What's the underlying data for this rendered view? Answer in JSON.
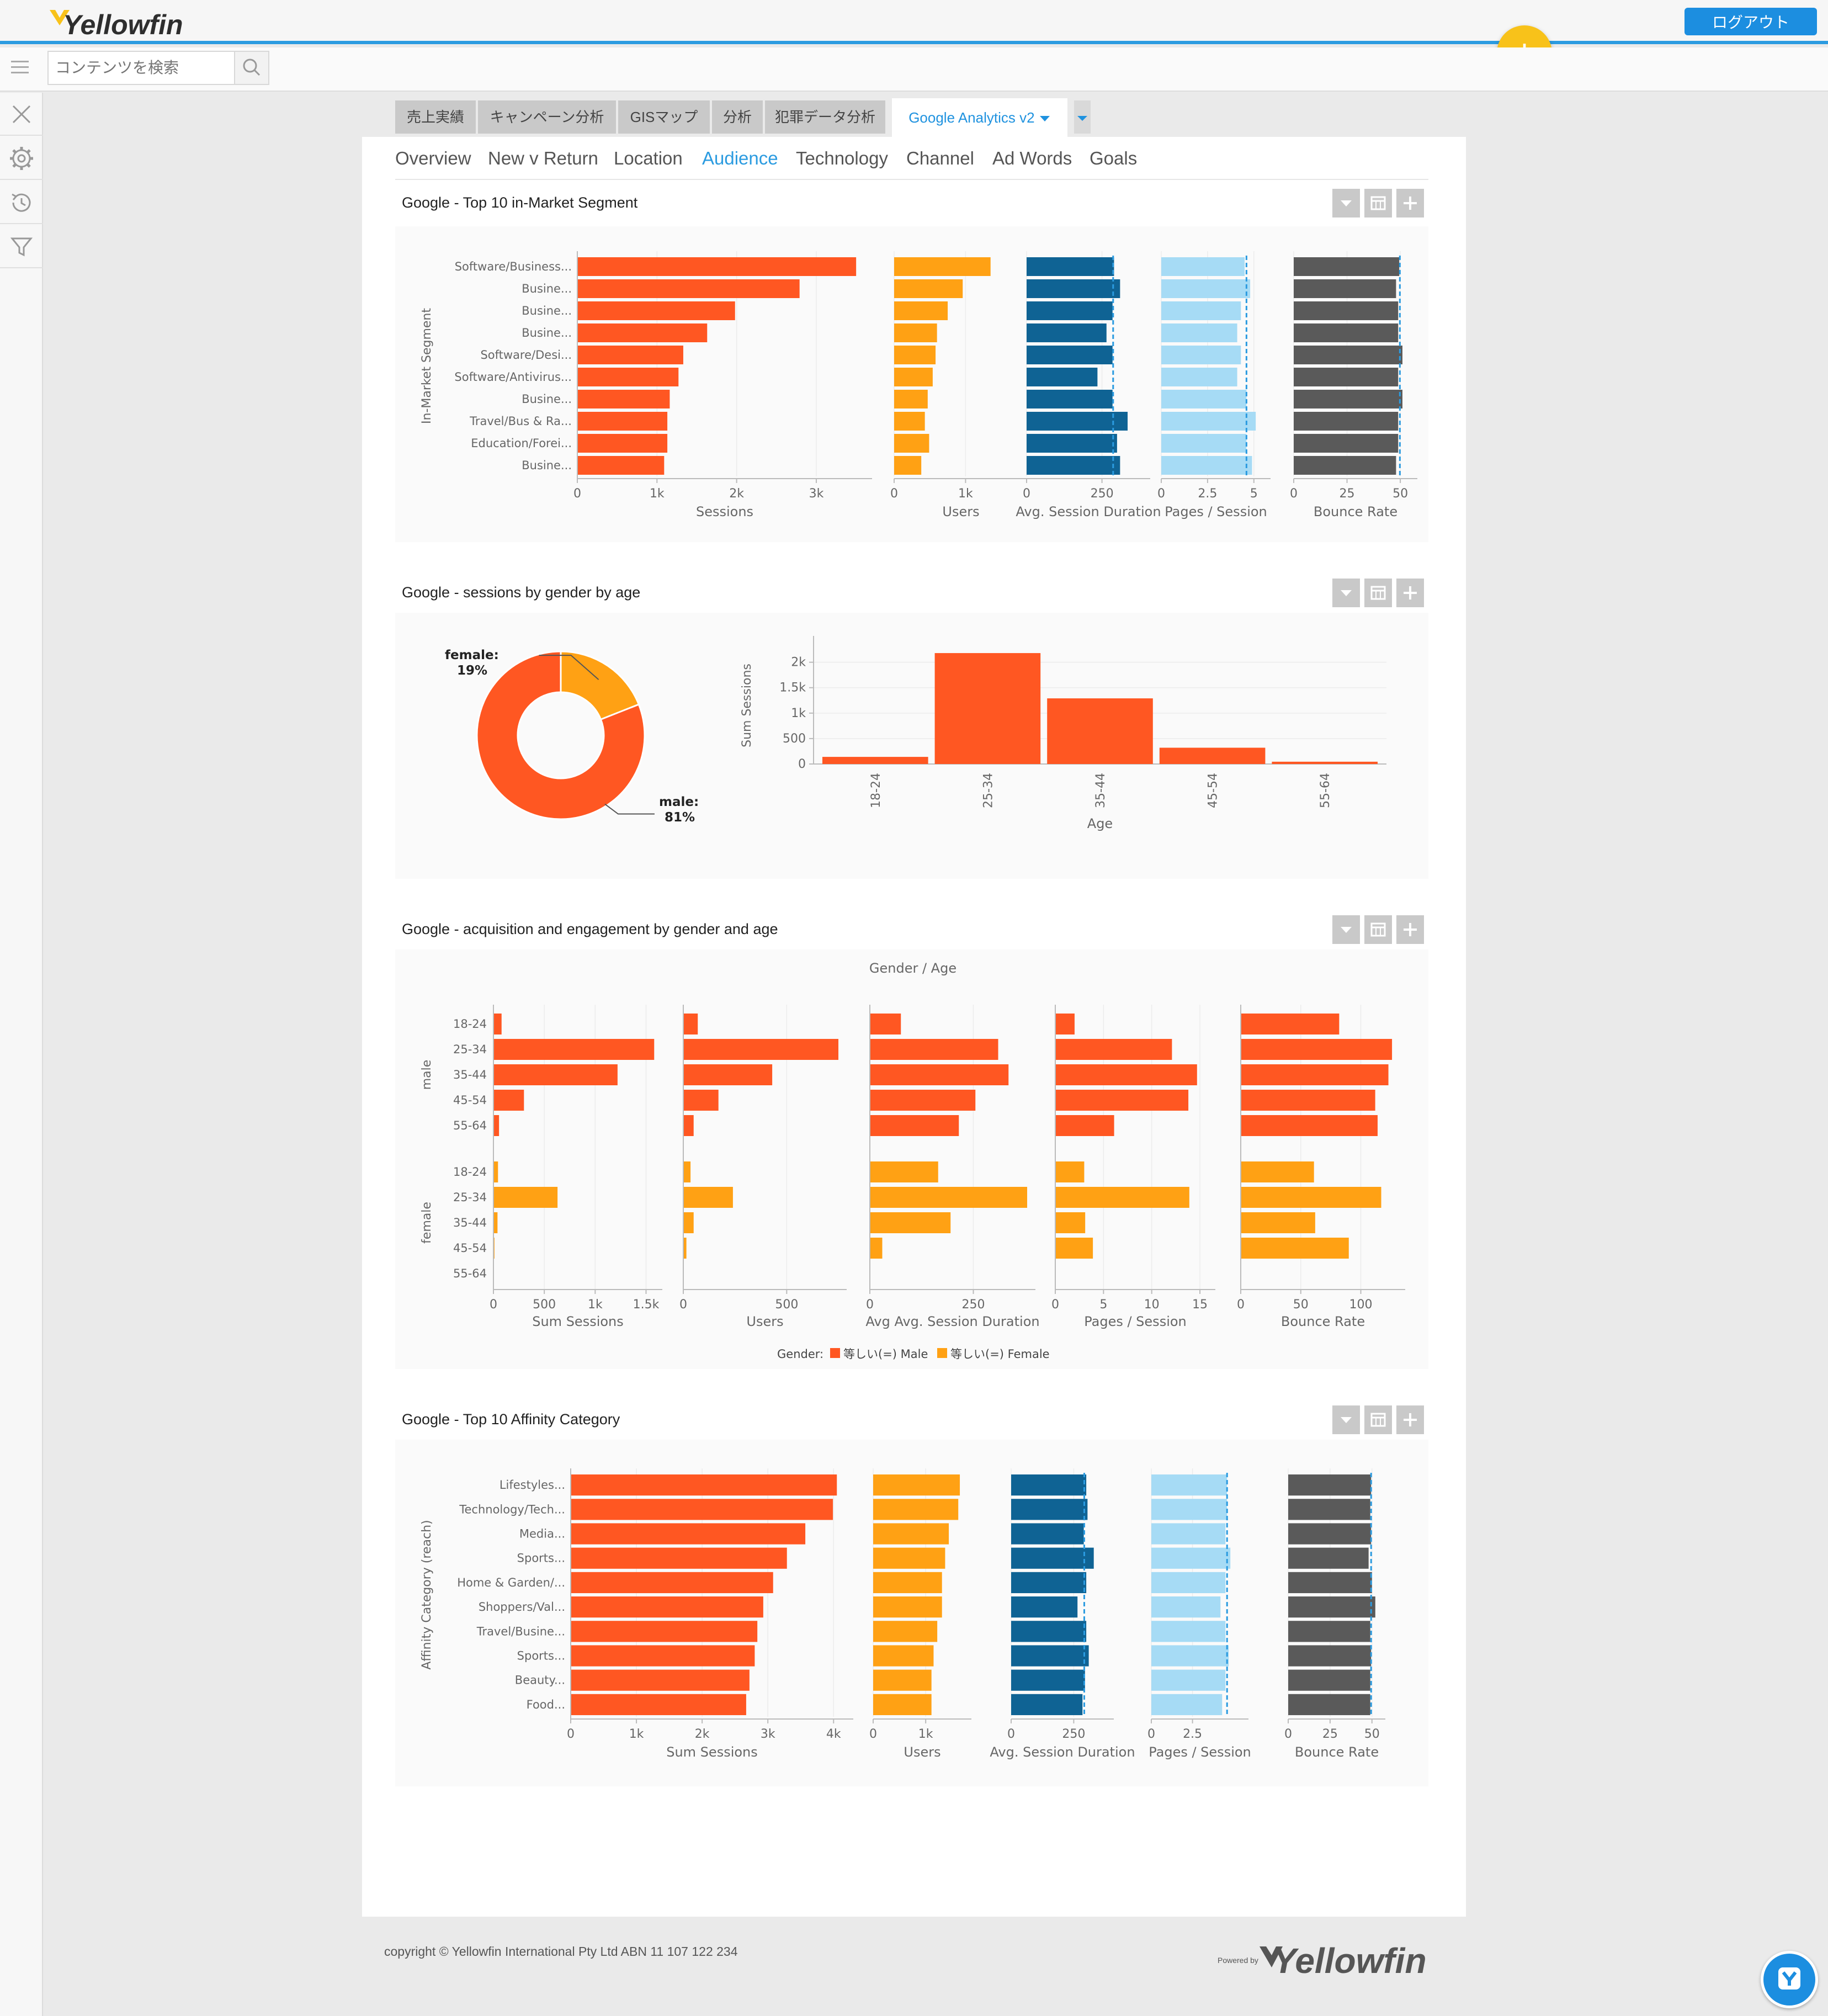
{
  "app": {
    "logo_text": "Yellowfin",
    "logout_label": "ログアウト",
    "fab_label": "+"
  },
  "search": {
    "placeholder": "コンテンツを検索"
  },
  "report_tabs": [
    "売上実績",
    "キャンペーン分析",
    "GISマップ",
    "分析",
    "犯罪データ分析",
    "Google Analytics v2"
  ],
  "active_report_tab": "Google Analytics v2",
  "sub_tabs": [
    "Overview",
    "New v Return",
    "Location",
    "Audience",
    "Technology",
    "Channel",
    "Ad Words",
    "Goals"
  ],
  "active_sub_tab": "Audience",
  "icons": {
    "menu": "menu-icon",
    "search": "search-icon",
    "close": "close-icon",
    "settings": "gear-icon",
    "history": "history-icon",
    "filter": "filter-icon",
    "dropdown": "chevron-down-icon",
    "table": "table-icon",
    "add": "plus-icon",
    "chat": "yellowfin-chat-icon"
  },
  "colors": {
    "orange": "#ff5722",
    "amber": "#ffa114",
    "navy": "#0f6394",
    "lightblue": "#a6dbf5",
    "grey": "#5a5a5a",
    "accent": "#2b9be0"
  },
  "reports": {
    "r1": "Google - Top 10 in-Market Segment",
    "r2": "Google - sessions by gender by age",
    "r3": "Google - acquisition and engagement by gender and age",
    "r4": "Google - Top 10 Affinity Category"
  },
  "chart_data": [
    {
      "id": "r1",
      "type": "bar",
      "orientation": "horizontal",
      "ylabel": "In-Market Segment",
      "categories": [
        "Software/Business...",
        "Busine...",
        "Busine...",
        "Busine...",
        "Software/Desi...",
        "Software/Antivirus...",
        "Busine...",
        "Travel/Bus & Ra...",
        "Education/Forei...",
        "Busine..."
      ],
      "panels": [
        {
          "name": "Sessions",
          "color": "#ff5722",
          "values": [
            3500,
            2790,
            1980,
            1630,
            1330,
            1270,
            1160,
            1130,
            1130,
            1090
          ],
          "ticks": [
            0,
            1000,
            2000,
            3000
          ],
          "tick_labels": [
            "0",
            "1k",
            "2k",
            "3k"
          ],
          "xlim": [
            0,
            3700
          ]
        },
        {
          "name": "Users",
          "color": "#ffa114",
          "values": [
            1350,
            960,
            750,
            600,
            580,
            540,
            470,
            430,
            490,
            380
          ],
          "ticks": [
            0,
            1000
          ],
          "tick_labels": [
            "0",
            "1k"
          ],
          "xlim": [
            0,
            1870
          ]
        },
        {
          "name": "Avg. Session Duration",
          "color": "#0f6394",
          "values": [
            290,
            310,
            285,
            265,
            285,
            235,
            285,
            335,
            300,
            310
          ],
          "avg": 287,
          "ticks": [
            0,
            250
          ],
          "tick_labels": [
            "0",
            "250"
          ],
          "xlim": [
            0,
            410
          ]
        },
        {
          "name": "Pages / Session",
          "color": "#a6dbf5",
          "values": [
            4.5,
            4.8,
            4.3,
            4.1,
            4.3,
            4.1,
            4.6,
            5.1,
            4.6,
            4.9
          ],
          "avg": 4.6,
          "ticks": [
            0,
            2.5,
            5
          ],
          "tick_labels": [
            "0",
            "2.5",
            "5"
          ],
          "xlim": [
            0,
            5.9
          ]
        },
        {
          "name": "Bounce Rate",
          "color": "#5a5a5a",
          "values": [
            49.5,
            48,
            49,
            49,
            51,
            49,
            51,
            49,
            49,
            48
          ],
          "avg": 49.8,
          "ticks": [
            0,
            25,
            50
          ],
          "tick_labels": [
            "0",
            "25",
            "50"
          ],
          "xlim": [
            0,
            58
          ]
        }
      ]
    },
    {
      "id": "r2a",
      "type": "pie",
      "subtype": "donut",
      "slices": [
        {
          "label": "female",
          "value": 19,
          "display": "19%",
          "color": "#ffa114"
        },
        {
          "label": "male",
          "value": 81,
          "display": "81%",
          "color": "#ff5722"
        }
      ]
    },
    {
      "id": "r2b",
      "type": "bar",
      "categories": [
        "18-24",
        "25-34",
        "35-44",
        "45-54",
        "55-64"
      ],
      "values": [
        140,
        2180,
        1290,
        320,
        45
      ],
      "xlabel": "Age",
      "ylabel": "Sum Sessions",
      "ylim": [
        0,
        2300
      ],
      "ticks": [
        0,
        500,
        1000,
        1500,
        2000
      ],
      "tick_labels": [
        "0",
        "500",
        "1k",
        "1.5k",
        "2k"
      ],
      "color": "#ff5722"
    },
    {
      "id": "r3",
      "type": "bar",
      "orientation": "horizontal",
      "title": "Gender / Age",
      "categories": [
        "18-24",
        "25-34",
        "35-44",
        "45-54",
        "55-64"
      ],
      "groups": [
        "male",
        "female"
      ],
      "legend": {
        "title": "Gender:",
        "items": [
          {
            "label": "等しい(=) Male",
            "color": "#ff5722"
          },
          {
            "label": "等しい(=) Female",
            "color": "#ffa114"
          }
        ]
      },
      "panels": [
        {
          "name": "Sum Sessions",
          "ticks": [
            0,
            500,
            1000,
            1500
          ],
          "tick_labels": [
            "0",
            "500",
            "1k",
            "1.5k"
          ],
          "xlim": [
            0,
            1660
          ],
          "male": [
            80,
            1580,
            1220,
            300,
            55
          ],
          "female": [
            45,
            630,
            40,
            10,
            0
          ]
        },
        {
          "name": "Users",
          "ticks": [
            0,
            500
          ],
          "tick_labels": [
            "0",
            "500"
          ],
          "xlim": [
            0,
            790
          ],
          "male": [
            70,
            750,
            430,
            170,
            50
          ],
          "female": [
            35,
            240,
            50,
            15,
            0
          ]
        },
        {
          "name": "Avg Avg. Session Duration",
          "ticks": [
            0,
            250
          ],
          "tick_labels": [
            "0",
            "250"
          ],
          "xlim": [
            0,
            400
          ],
          "male": [
            75,
            310,
            335,
            255,
            215
          ],
          "female": [
            165,
            380,
            195,
            30,
            0
          ]
        },
        {
          "name": "Pages / Session",
          "ticks": [
            0,
            5,
            10,
            15
          ],
          "tick_labels": [
            "0",
            "5",
            "10",
            "15"
          ],
          "xlim": [
            0,
            16.6
          ],
          "male": [
            2,
            12.1,
            14.7,
            13.8,
            6.1
          ],
          "female": [
            3,
            13.9,
            3.1,
            3.9,
            0
          ]
        },
        {
          "name": "Bounce Rate",
          "ticks": [
            0,
            50,
            100
          ],
          "tick_labels": [
            "0",
            "50",
            "100"
          ],
          "xlim": [
            0,
            137
          ],
          "male": [
            82,
            126,
            123,
            112,
            114
          ],
          "female": [
            61,
            117,
            62,
            90,
            0
          ]
        }
      ]
    },
    {
      "id": "r4",
      "type": "bar",
      "orientation": "horizontal",
      "ylabel": "Affinity Category (reach)",
      "categories": [
        "Lifestyles...",
        "Technology/Tech...",
        "Media...",
        "Sports...",
        "Home & Garden/...",
        "Shoppers/Val...",
        "Travel/Busine...",
        "Sports...",
        "Beauty...",
        "Food..."
      ],
      "panels": [
        {
          "name": "Sum Sessions",
          "color": "#ff5722",
          "values": [
            4050,
            3990,
            3570,
            3290,
            3080,
            2930,
            2840,
            2800,
            2720,
            2670
          ],
          "ticks": [
            0,
            1000,
            2000,
            3000,
            4000
          ],
          "tick_labels": [
            "0",
            "1k",
            "2k",
            "3k",
            "4k"
          ],
          "xlim": [
            0,
            4300
          ]
        },
        {
          "name": "Users",
          "color": "#ffa114",
          "values": [
            1650,
            1620,
            1440,
            1370,
            1310,
            1310,
            1220,
            1150,
            1110,
            1110
          ],
          "ticks": [
            0,
            1000
          ],
          "tick_labels": [
            "0",
            "1k"
          ],
          "xlim": [
            0,
            1870
          ]
        },
        {
          "name": "Avg. Session Duration",
          "color": "#0f6394",
          "values": [
            300,
            305,
            290,
            330,
            300,
            265,
            300,
            310,
            295,
            285
          ],
          "avg": 292,
          "ticks": [
            0,
            250
          ],
          "tick_labels": [
            "0",
            "250"
          ],
          "xlim": [
            0,
            410
          ]
        },
        {
          "name": "Pages / Session",
          "color": "#a6dbf5",
          "values": [
            4.6,
            4.6,
            4.5,
            4.8,
            4.5,
            4.2,
            4.5,
            4.7,
            4.5,
            4.3
          ],
          "avg": 4.6,
          "ticks": [
            0,
            2.5
          ],
          "tick_labels": [
            "0",
            "2.5"
          ],
          "xlim": [
            0,
            5.9
          ]
        },
        {
          "name": "Bounce Rate",
          "color": "#5a5a5a",
          "values": [
            49.5,
            49,
            49.5,
            48,
            50,
            52,
            49,
            49.5,
            49,
            49
          ],
          "avg": 49.5,
          "ticks": [
            0,
            25,
            50
          ],
          "tick_labels": [
            "0",
            "25",
            "50"
          ],
          "xlim": [
            0,
            58
          ]
        }
      ]
    }
  ],
  "footer": {
    "copyright": "copyright © Yellowfin International Pty Ltd ABN 11 107 122 234",
    "powered_by": "Powered by",
    "brand": "Yellowfin"
  }
}
